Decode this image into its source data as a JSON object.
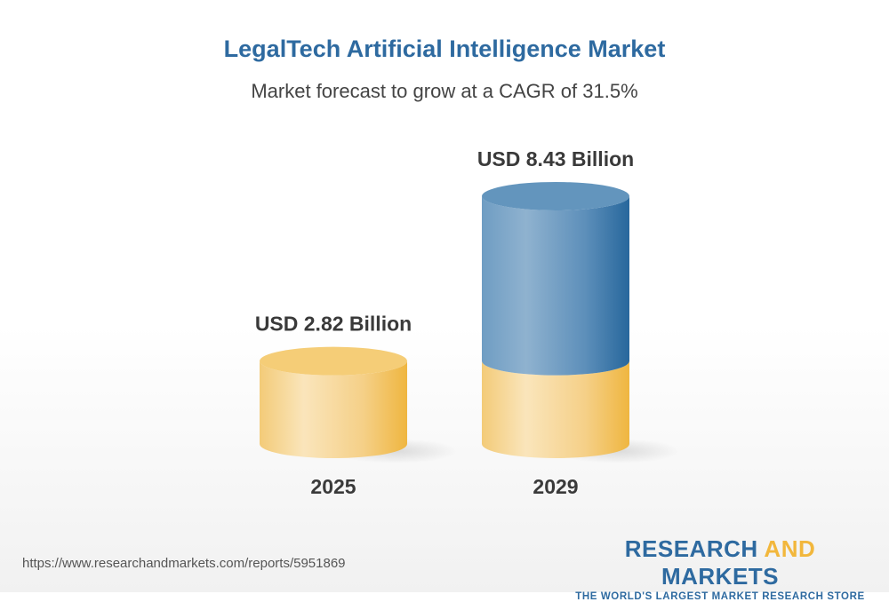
{
  "chart_data": {
    "type": "bar",
    "style": "3d-cylinder",
    "title": "LegalTech Artificial Intelligence Market",
    "subtitle": "Market forecast to grow at a CAGR of 31.5%",
    "categories": [
      "2025",
      "2029"
    ],
    "values": [
      2.82,
      8.43
    ],
    "value_labels": [
      "USD 2.82 Billion",
      "USD 8.43 Billion"
    ],
    "unit": "USD Billion",
    "colors": {
      "base": "#f2c15a",
      "growth": "#3d78a8"
    },
    "grid": false
  },
  "footer": {
    "url": "https://www.researchandmarkets.com/reports/5951869",
    "logo_word1": "RESEARCH",
    "logo_word2": "AND",
    "logo_word3": "MARKETS",
    "logo_tagline": "THE WORLD'S LARGEST MARKET RESEARCH STORE"
  }
}
